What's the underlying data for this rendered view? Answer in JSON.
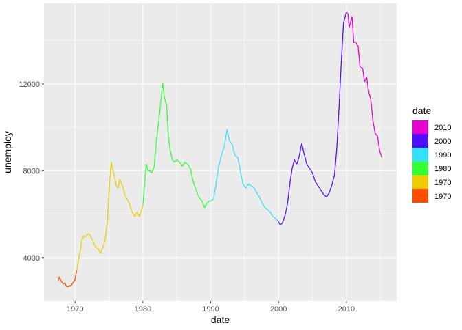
{
  "chart_data": {
    "type": "line",
    "xlabel": "date",
    "ylabel": "unemploy",
    "xlim": [
      "1965-06-01",
      "2017-06-01"
    ],
    "ylim": [
      2000,
      15700
    ],
    "x_ticks": [
      {
        "value": "1970-01-01",
        "label": "1970"
      },
      {
        "value": "1980-01-01",
        "label": "1980"
      },
      {
        "value": "1990-01-01",
        "label": "1990"
      },
      {
        "value": "2000-01-01",
        "label": "2000"
      },
      {
        "value": "2010-01-01",
        "label": "2010"
      }
    ],
    "y_ticks": [
      {
        "value": 4000,
        "label": "4000"
      },
      {
        "value": 8000,
        "label": "8000"
      },
      {
        "value": 12000,
        "label": "12000"
      }
    ],
    "grid": true,
    "legend": {
      "title": "date",
      "position": "right",
      "items": [
        {
          "label": "2010",
          "color": "#E600D0"
        },
        {
          "label": "2000",
          "color": "#4D10FF"
        },
        {
          "label": "1990",
          "color": "#33E0FF"
        },
        {
          "label": "1980",
          "color": "#33FF33"
        },
        {
          "label": "1970",
          "color": "#EECC00"
        },
        {
          "label": "1970",
          "color": "#FF4D00"
        }
      ]
    },
    "series": [
      {
        "color": "#FF4D00",
        "points": [
          [
            "1967-07-01",
            2940
          ],
          [
            "1967-09-01",
            3100
          ],
          [
            "1967-11-01",
            3000
          ],
          [
            "1968-01-01",
            2900
          ],
          [
            "1968-04-01",
            2800
          ],
          [
            "1968-07-01",
            2850
          ],
          [
            "1968-09-01",
            2700
          ],
          [
            "1968-12-01",
            2650
          ],
          [
            "1969-03-01",
            2700
          ],
          [
            "1969-06-01",
            2700
          ],
          [
            "1969-09-01",
            2850
          ],
          [
            "1969-11-01",
            2900
          ],
          [
            "1970-01-01",
            3000
          ],
          [
            "1970-02-01",
            3200
          ],
          [
            "1970-04-01",
            3400
          ]
        ]
      },
      {
        "color": "#EECC00",
        "points": [
          [
            "1970-04-01",
            3400
          ],
          [
            "1970-07-01",
            3900
          ],
          [
            "1970-10-01",
            4300
          ],
          [
            "1971-01-01",
            4800
          ],
          [
            "1971-04-01",
            5000
          ],
          [
            "1971-07-01",
            4950
          ],
          [
            "1971-10-01",
            5050
          ],
          [
            "1972-01-01",
            5100
          ],
          [
            "1972-04-01",
            5000
          ],
          [
            "1972-08-01",
            4800
          ],
          [
            "1973-01-01",
            4500
          ],
          [
            "1973-06-01",
            4400
          ],
          [
            "1973-10-01",
            4200
          ],
          [
            "1974-03-01",
            4550
          ],
          [
            "1974-06-01",
            4800
          ],
          [
            "1974-10-01",
            5600
          ],
          [
            "1975-01-01",
            7000
          ],
          [
            "1975-03-01",
            7700
          ],
          [
            "1975-05-01",
            8400
          ],
          [
            "1975-08-01",
            8000
          ],
          [
            "1975-11-01",
            7700
          ],
          [
            "1976-02-01",
            7300
          ],
          [
            "1976-05-01",
            7200
          ],
          [
            "1976-08-01",
            7600
          ],
          [
            "1977-01-01",
            7300
          ],
          [
            "1977-05-01",
            6900
          ],
          [
            "1977-09-01",
            6700
          ],
          [
            "1978-01-01",
            6500
          ],
          [
            "1978-06-01",
            6100
          ],
          [
            "1978-10-01",
            5900
          ],
          [
            "1979-03-01",
            6100
          ],
          [
            "1979-07-01",
            5900
          ],
          [
            "1979-11-01",
            6200
          ],
          [
            "1980-01-01",
            6400
          ]
        ]
      },
      {
        "color": "#33FF33",
        "points": [
          [
            "1980-01-01",
            6400
          ],
          [
            "1980-04-01",
            7400
          ],
          [
            "1980-07-01",
            8300
          ],
          [
            "1980-10-01",
            8000
          ],
          [
            "1981-01-01",
            8000
          ],
          [
            "1981-05-01",
            7900
          ],
          [
            "1981-09-01",
            8200
          ],
          [
            "1982-01-01",
            9400
          ],
          [
            "1982-06-01",
            10500
          ],
          [
            "1982-10-01",
            11500
          ],
          [
            "1982-12-01",
            12050
          ],
          [
            "1983-03-01",
            11400
          ],
          [
            "1983-07-01",
            11000
          ],
          [
            "1983-10-01",
            9600
          ],
          [
            "1984-01-01",
            9000
          ],
          [
            "1984-05-01",
            8500
          ],
          [
            "1984-09-01",
            8400
          ],
          [
            "1985-01-01",
            8500
          ],
          [
            "1985-06-01",
            8400
          ],
          [
            "1985-11-01",
            8200
          ],
          [
            "1986-03-01",
            8400
          ],
          [
            "1986-08-01",
            8300
          ],
          [
            "1987-01-01",
            8100
          ],
          [
            "1987-06-01",
            7500
          ],
          [
            "1987-10-01",
            7200
          ],
          [
            "1988-02-01",
            6900
          ],
          [
            "1988-06-01",
            6700
          ],
          [
            "1988-10-01",
            6600
          ],
          [
            "1989-02-01",
            6300
          ],
          [
            "1989-06-01",
            6500
          ],
          [
            "1989-10-01",
            6600
          ],
          [
            "1990-01-01",
            6600
          ]
        ]
      },
      {
        "color": "#33E0FF",
        "points": [
          [
            "1990-01-01",
            6600
          ],
          [
            "1990-06-01",
            6700
          ],
          [
            "1990-10-01",
            7300
          ],
          [
            "1991-03-01",
            8200
          ],
          [
            "1991-08-01",
            8700
          ],
          [
            "1992-01-01",
            9100
          ],
          [
            "1992-06-01",
            9900
          ],
          [
            "1992-10-01",
            9400
          ],
          [
            "1993-03-01",
            9200
          ],
          [
            "1993-08-01",
            8700
          ],
          [
            "1994-01-01",
            8600
          ],
          [
            "1994-06-01",
            7900
          ],
          [
            "1994-10-01",
            7400
          ],
          [
            "1995-03-01",
            7200
          ],
          [
            "1995-08-01",
            7400
          ],
          [
            "1996-01-01",
            7300
          ],
          [
            "1996-06-01",
            7200
          ],
          [
            "1996-10-01",
            7000
          ],
          [
            "1997-03-01",
            6800
          ],
          [
            "1997-08-01",
            6500
          ],
          [
            "1998-01-01",
            6300
          ],
          [
            "1998-06-01",
            6200
          ],
          [
            "1998-10-01",
            6100
          ],
          [
            "1999-03-01",
            5900
          ],
          [
            "1999-08-01",
            5800
          ],
          [
            "2000-01-01",
            5650
          ]
        ]
      },
      {
        "color": "#4D10FF",
        "points": [
          [
            "2000-01-01",
            5650
          ],
          [
            "2000-04-01",
            5500
          ],
          [
            "2000-08-01",
            5600
          ],
          [
            "2001-01-01",
            6000
          ],
          [
            "2001-05-01",
            6500
          ],
          [
            "2001-09-01",
            7400
          ],
          [
            "2002-01-01",
            8100
          ],
          [
            "2002-05-01",
            8500
          ],
          [
            "2002-09-01",
            8300
          ],
          [
            "2003-01-01",
            8600
          ],
          [
            "2003-06-01",
            9250
          ],
          [
            "2003-10-01",
            8800
          ],
          [
            "2004-03-01",
            8300
          ],
          [
            "2004-08-01",
            8100
          ],
          [
            "2005-01-01",
            7900
          ],
          [
            "2005-06-01",
            7500
          ],
          [
            "2005-11-01",
            7300
          ],
          [
            "2006-04-01",
            7100
          ],
          [
            "2006-09-01",
            6900
          ],
          [
            "2007-02-01",
            6800
          ],
          [
            "2007-07-01",
            7000
          ],
          [
            "2007-12-01",
            7400
          ],
          [
            "2008-04-01",
            7800
          ],
          [
            "2008-08-01",
            9000
          ],
          [
            "2008-12-01",
            10900
          ],
          [
            "2009-04-01",
            13000
          ],
          [
            "2009-08-01",
            14800
          ],
          [
            "2009-12-01",
            15200
          ],
          [
            "2010-01-01",
            15300
          ]
        ]
      },
      {
        "color": "#E600D0",
        "points": [
          [
            "2010-01-01",
            15300
          ],
          [
            "2010-04-01",
            15200
          ],
          [
            "2010-06-01",
            14600
          ],
          [
            "2010-09-01",
            14900
          ],
          [
            "2010-11-01",
            15100
          ],
          [
            "2011-02-01",
            13900
          ],
          [
            "2011-06-01",
            13900
          ],
          [
            "2011-10-01",
            13700
          ],
          [
            "2012-01-01",
            12800
          ],
          [
            "2012-06-01",
            12700
          ],
          [
            "2012-09-01",
            12100
          ],
          [
            "2013-01-01",
            12300
          ],
          [
            "2013-04-01",
            11700
          ],
          [
            "2013-08-01",
            11300
          ],
          [
            "2013-12-01",
            10300
          ],
          [
            "2014-04-01",
            9700
          ],
          [
            "2014-08-01",
            9600
          ],
          [
            "2014-12-01",
            8900
          ],
          [
            "2015-04-01",
            8600
          ]
        ]
      }
    ]
  }
}
